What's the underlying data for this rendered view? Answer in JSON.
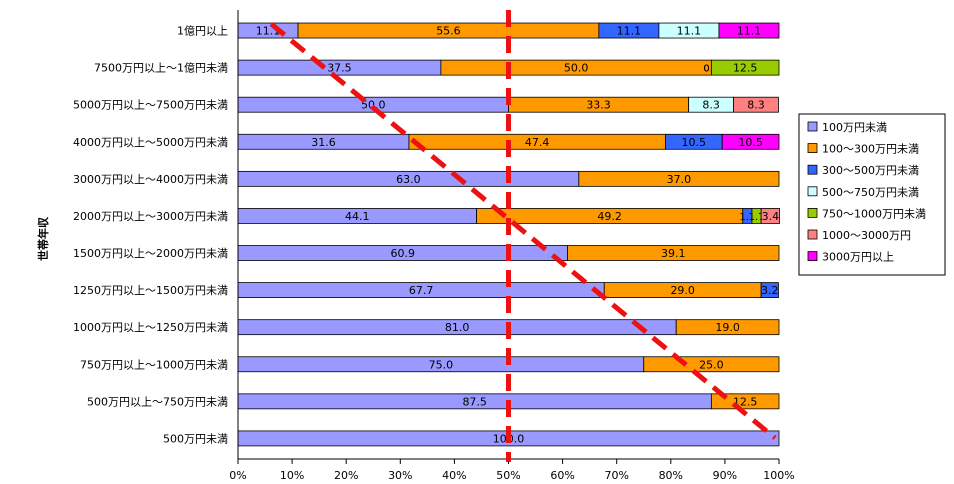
{
  "chart_data": {
    "type": "bar",
    "orientation": "horizontal",
    "stacked": true,
    "percent": true,
    "ylabel": "世帯年収",
    "xlim": [
      0,
      100
    ],
    "xticks": [
      "0%",
      "10%",
      "20%",
      "30%",
      "40%",
      "50%",
      "60%",
      "70%",
      "80%",
      "90%",
      "100%"
    ],
    "legend_position": "right",
    "grid": false,
    "categories": [
      "1億円以上",
      "7500万円以上～1億円未満",
      "5000万円以上～7500万円未満",
      "4000万円以上～5000万円未満",
      "3000万円以上～4000万円未満",
      "2000万円以上～3000万円未満",
      "1500万円以上～2000万円未満",
      "1250万円以上～1500万円未満",
      "1000万円以上～1250万円未満",
      "750万円以上～1000万円未満",
      "500万円以上～750万円未満",
      "500万円未満"
    ],
    "series": [
      {
        "name": "100万円未満",
        "color": "#9999ff",
        "values": [
          11.1,
          37.5,
          50.0,
          31.6,
          63.0,
          44.1,
          60.9,
          67.7,
          81.0,
          75.0,
          87.5,
          100.0
        ],
        "labels": [
          "11.1",
          "37.5",
          "50.0",
          "31.6",
          "63.0",
          "44.1",
          "60.9",
          "67.7",
          "81.0",
          "75.0",
          "87.5",
          "100.0"
        ]
      },
      {
        "name": "100～300万円未満",
        "color": "#ff9900",
        "values": [
          55.6,
          50.0,
          33.3,
          47.4,
          37.0,
          49.2,
          39.1,
          29.0,
          19.0,
          25.0,
          12.5,
          0
        ],
        "labels": [
          "55.6",
          "50.0",
          "33.3",
          "47.4",
          "37.0",
          "49.2",
          "39.1",
          "29.0",
          "19.0",
          "25.0",
          "12.5",
          ""
        ]
      },
      {
        "name": "300～500万円未満",
        "color": "#3366ff",
        "values": [
          11.1,
          0,
          0,
          10.5,
          0,
          1.7,
          0,
          3.2,
          0,
          0,
          0,
          0
        ],
        "labels": [
          "11.1",
          "0.0",
          "",
          "10.5",
          "",
          "1.7",
          "",
          "3.2",
          "",
          "",
          "",
          ""
        ]
      },
      {
        "name": "500～750万円未満",
        "color": "#ccffff",
        "values": [
          11.1,
          0,
          8.3,
          0,
          0,
          0,
          0,
          0,
          0,
          0,
          0,
          0
        ],
        "labels": [
          "11.1",
          "0.0",
          "8.3",
          "",
          "",
          "",
          "",
          "",
          "",
          "",
          "",
          ""
        ]
      },
      {
        "name": "750～1000万円未満",
        "color": "#99cc00",
        "values": [
          0,
          12.5,
          0,
          0,
          0,
          1.7,
          0,
          0,
          0,
          0,
          0,
          0
        ],
        "labels": [
          "",
          "12.5",
          "",
          "",
          "",
          "1.7",
          "",
          "",
          "",
          "",
          "",
          ""
        ]
      },
      {
        "name": "1000～3000万円",
        "color": "#ff8080",
        "values": [
          0,
          0,
          8.3,
          0,
          0,
          3.4,
          0,
          0,
          0,
          0,
          0,
          0
        ],
        "labels": [
          "",
          "",
          "8.3",
          "",
          "",
          "3.4",
          "",
          "",
          "",
          "",
          "",
          ""
        ]
      },
      {
        "name": "3000万円以上",
        "color": "#ff00ff",
        "values": [
          11.1,
          0,
          0,
          10.5,
          0,
          0,
          0,
          0,
          0,
          0,
          0,
          0
        ],
        "labels": [
          "11.1",
          "",
          "",
          "10.5",
          "",
          "",
          "",
          "",
          "",
          "",
          "",
          ""
        ]
      }
    ],
    "annotations": [
      {
        "type": "vertical-dashed-line",
        "x": 50,
        "color": "#ee1111"
      },
      {
        "type": "diagonal-dashed-line",
        "from_x": 8,
        "to_x": 100,
        "color": "#ee1111"
      }
    ]
  }
}
